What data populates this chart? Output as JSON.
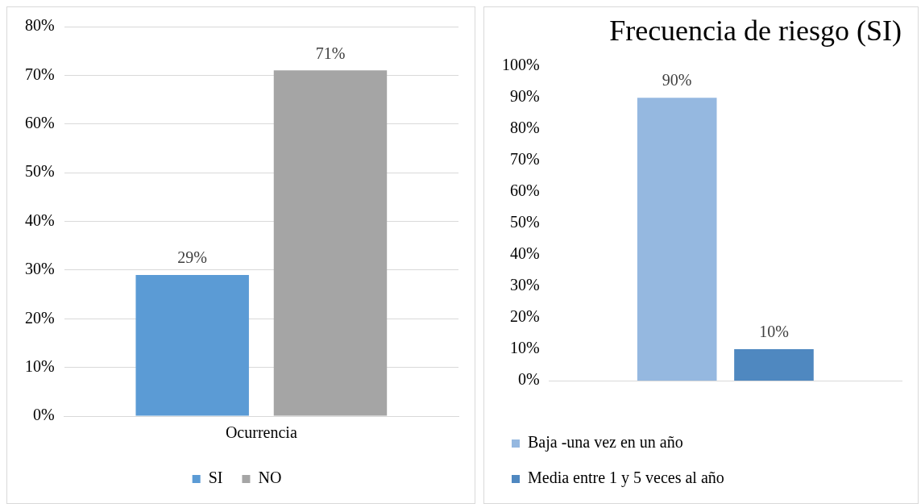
{
  "chart_data": [
    {
      "type": "bar",
      "categories": [
        "Ocurrencia"
      ],
      "series": [
        {
          "name": "SI",
          "color": "#5b9bd5",
          "values": [
            29
          ],
          "value_labels": [
            "29%"
          ]
        },
        {
          "name": "NO",
          "color": "#a5a5a5",
          "values": [
            71
          ],
          "value_labels": [
            "71%"
          ]
        }
      ],
      "ylim": [
        0,
        80
      ],
      "yticks": [
        {
          "value": 0,
          "label": "0%"
        },
        {
          "value": 10,
          "label": "10%"
        },
        {
          "value": 20,
          "label": "20%"
        },
        {
          "value": 30,
          "label": "30%"
        },
        {
          "value": 40,
          "label": "40%"
        },
        {
          "value": 50,
          "label": "50%"
        },
        {
          "value": 60,
          "label": "60%"
        },
        {
          "value": 70,
          "label": "70%"
        },
        {
          "value": 80,
          "label": "80%"
        }
      ],
      "grid": "y",
      "legend": "bottom"
    },
    {
      "type": "bar",
      "title": "Frecuencia de riesgo (SI)",
      "categories": [
        null
      ],
      "series": [
        {
          "name": "Baja -una vez en un año",
          "color": "#95b8e0",
          "values": [
            90
          ],
          "value_labels": [
            "90%"
          ]
        },
        {
          "name": "Media entre 1 y 5 veces al año",
          "color": "#4f88c0",
          "values": [
            10
          ],
          "value_labels": [
            "10%"
          ]
        }
      ],
      "ylim": [
        0,
        100
      ],
      "yticks": [
        {
          "value": 0,
          "label": "0%"
        },
        {
          "value": 10,
          "label": "10%"
        },
        {
          "value": 20,
          "label": "20%"
        },
        {
          "value": 30,
          "label": "30%"
        },
        {
          "value": 40,
          "label": "40%"
        },
        {
          "value": 50,
          "label": "50%"
        },
        {
          "value": 60,
          "label": "60%"
        },
        {
          "value": 70,
          "label": "70%"
        },
        {
          "value": 80,
          "label": "80%"
        },
        {
          "value": 90,
          "label": "90%"
        },
        {
          "value": 100,
          "label": "100%"
        }
      ],
      "legend": "bottom"
    }
  ]
}
